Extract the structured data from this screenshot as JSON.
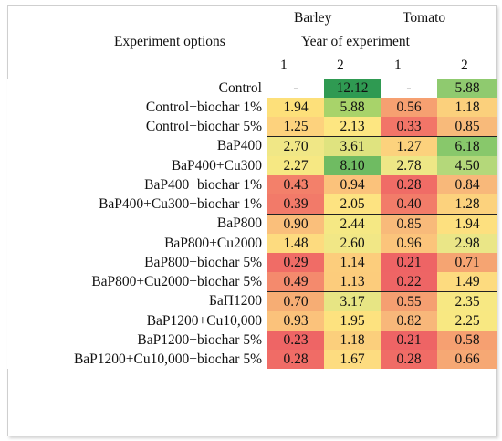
{
  "header": {
    "barley": "Barley",
    "tomato": "Tomato",
    "options": "Experiment options",
    "year": "Year of experiment",
    "years": [
      "1",
      "2",
      "1",
      "2"
    ]
  },
  "rows": [
    {
      "label": "Control",
      "values": [
        "-",
        "12.12",
        "-",
        "5.88"
      ],
      "colors": [
        "#ffffff",
        "#2f9a52",
        "#ffffff",
        "#8fca6f"
      ]
    },
    {
      "label": "Control+biochar 1%",
      "values": [
        "1.94",
        "5.88",
        "0.56",
        "1.18"
      ],
      "colors": [
        "#fde07a",
        "#a8d36a",
        "#f6a071",
        "#fbd07c"
      ]
    },
    {
      "label": "Control+biochar 5%",
      "values": [
        "1.25",
        "2.13",
        "0.33",
        "0.85"
      ],
      "colors": [
        "#fdd27d",
        "#fde681",
        "#f27568",
        "#f8ba7a"
      ]
    },
    {
      "label": "BaP400",
      "values": [
        "2.70",
        "3.61",
        "1.27",
        "6.18"
      ],
      "colors": [
        "#f0e786",
        "#dfe37f",
        "#fcd27d",
        "#88c86b"
      ]
    },
    {
      "label": "BaP400+Cu300",
      "values": [
        "2.27",
        "8.10",
        "2.78",
        "4.50"
      ],
      "colors": [
        "#f6e883",
        "#6fbb62",
        "#eee786",
        "#b4d87a"
      ]
    },
    {
      "label": "BaP400+biochar 1%",
      "values": [
        "0.43",
        "0.94",
        "0.28",
        "0.84"
      ],
      "colors": [
        "#f3806a",
        "#fbc27b",
        "#f06c66",
        "#f8b87a"
      ]
    },
    {
      "label": "BaP400+Cu300+biochar 1%",
      "values": [
        "0.39",
        "2.05",
        "0.40",
        "1.28"
      ],
      "colors": [
        "#f27a69",
        "#fde381",
        "#f27c69",
        "#fcd27d"
      ]
    },
    {
      "label": "BaP800",
      "values": [
        "0.90",
        "2.44",
        "0.85",
        "1.94"
      ],
      "colors": [
        "#fabf7b",
        "#f5e884",
        "#f8ba7a",
        "#fde07f"
      ]
    },
    {
      "label": "BaP800+Cu2000",
      "values": [
        "1.48",
        "2.60",
        "0.96",
        "2.98"
      ],
      "colors": [
        "#fddb7f",
        "#f1e786",
        "#fbc47b",
        "#eae687"
      ]
    },
    {
      "label": "BaP800+biochar 5%",
      "values": [
        "0.29",
        "1.14",
        "0.21",
        "0.71"
      ],
      "colors": [
        "#f06c66",
        "#fccd7c",
        "#ee6465",
        "#f5a472"
      ]
    },
    {
      "label": "BaP800+Cu2000+biochar 5%",
      "values": [
        "0.49",
        "1.13",
        "0.22",
        "1.49"
      ],
      "colors": [
        "#f48a6d",
        "#fccc7c",
        "#ee6565",
        "#fddb7f"
      ]
    },
    {
      "label": "БаП1200",
      "values": [
        "0.70",
        "3.17",
        "0.55",
        "2.35"
      ],
      "colors": [
        "#f6ad74",
        "#e7e584",
        "#f59f71",
        "#f7e883"
      ]
    },
    {
      "label": "BaP1200+Cu10,000",
      "values": [
        "0.93",
        "1.95",
        "0.82",
        "2.25"
      ],
      "colors": [
        "#fbc27b",
        "#fde27f",
        "#f8b77a",
        "#f8e882"
      ]
    },
    {
      "label": "BaP1200+biochar 5%",
      "values": [
        "0.23",
        "1.18",
        "0.21",
        "0.58"
      ],
      "colors": [
        "#ee6565",
        "#fbcf7c",
        "#ee6465",
        "#f6a071"
      ]
    },
    {
      "label": "BaP1200+Cu10,000+biochar 5%",
      "values": [
        "0.28",
        "1.67",
        "0.28",
        "0.66"
      ],
      "colors": [
        "#f06c66",
        "#fddc80",
        "#f06c66",
        "#f6a874"
      ]
    }
  ]
}
